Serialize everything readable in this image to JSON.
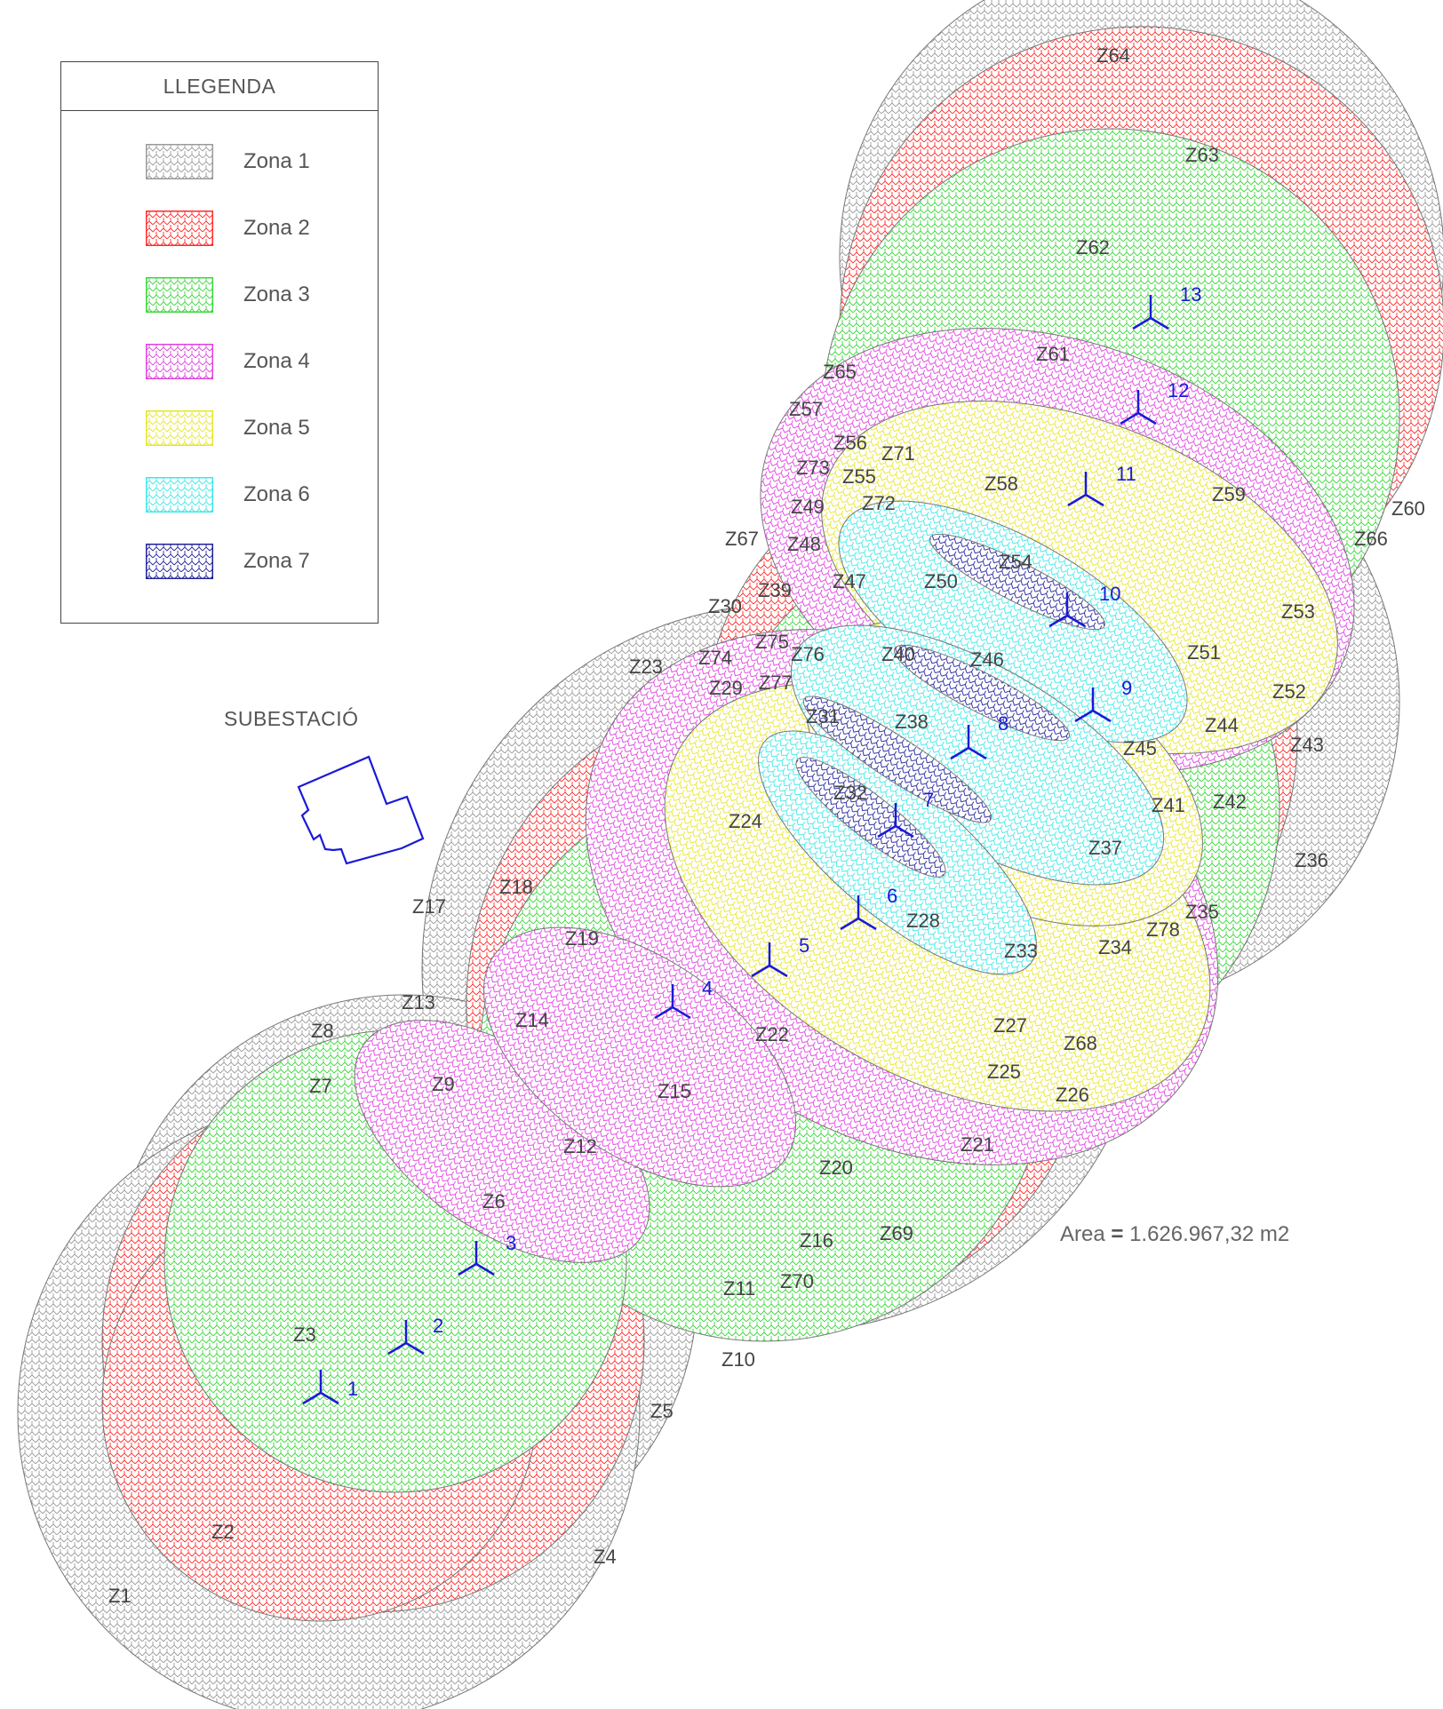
{
  "legend": {
    "title": "LLEGENDA",
    "items": [
      {
        "label": "Zona 1",
        "color": "#9a9a9a"
      },
      {
        "label": "Zona 2",
        "color": "#ff2a2a"
      },
      {
        "label": "Zona 3",
        "color": "#39d739"
      },
      {
        "label": "Zona 4",
        "color": "#e040e0"
      },
      {
        "label": "Zona 5",
        "color": "#f2f23a"
      },
      {
        "label": "Zona 6",
        "color": "#3ce8e8"
      },
      {
        "label": "Zona 7",
        "color": "#22229a"
      }
    ]
  },
  "substation_label": "SUBESTACIÓ",
  "area": {
    "prefix": "Area",
    "equals": "=",
    "value": "1.626.967,32 m2"
  },
  "turbines": [
    "1",
    "2",
    "3",
    "4",
    "5",
    "6",
    "7",
    "8",
    "9",
    "10",
    "11",
    "12",
    "13"
  ],
  "zone_labels": [
    "Z1",
    "Z2",
    "Z3",
    "Z4",
    "Z5",
    "Z6",
    "Z7",
    "Z8",
    "Z9",
    "Z10",
    "Z11",
    "Z12",
    "Z13",
    "Z14",
    "Z15",
    "Z16",
    "Z17",
    "Z18",
    "Z19",
    "Z20",
    "Z21",
    "Z22",
    "Z23",
    "Z24",
    "Z25",
    "Z26",
    "Z27",
    "Z28",
    "Z29",
    "Z30",
    "Z31",
    "Z32",
    "Z33",
    "Z34",
    "Z35",
    "Z36",
    "Z37",
    "Z38",
    "Z39",
    "Z40",
    "Z41",
    "Z42",
    "Z43",
    "Z44",
    "Z45",
    "Z46",
    "Z47",
    "Z48",
    "Z49",
    "Z50",
    "Z51",
    "Z52",
    "Z53",
    "Z54",
    "Z55",
    "Z56",
    "Z57",
    "Z58",
    "Z59",
    "Z60",
    "Z61",
    "Z62",
    "Z63",
    "Z64",
    "Z65",
    "Z66",
    "Z67",
    "Z68",
    "Z69",
    "Z70",
    "Z71",
    "Z72",
    "Z73",
    "Z74",
    "Z75",
    "Z76",
    "Z77",
    "Z78"
  ]
}
